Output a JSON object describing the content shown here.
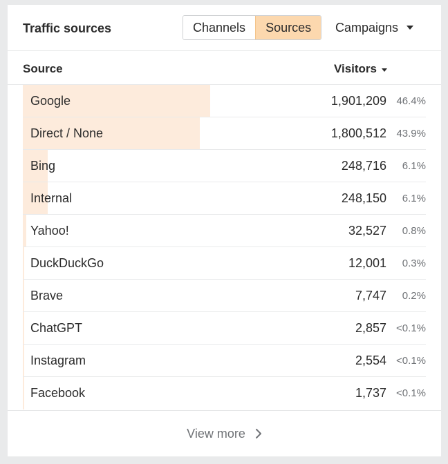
{
  "widget": {
    "title": "Traffic sources",
    "tabs": [
      {
        "label": "Channels",
        "active": false
      },
      {
        "label": "Sources",
        "active": true
      }
    ],
    "campaigns_label": "Campaigns"
  },
  "table": {
    "columns": {
      "source": "Source",
      "visitors": "Visitors"
    },
    "rows": [
      {
        "name": "Google",
        "visitors": "1,901,209",
        "pct": "46.4%",
        "share": 0.464
      },
      {
        "name": "Direct / None",
        "visitors": "1,800,512",
        "pct": "43.9%",
        "share": 0.439
      },
      {
        "name": "Bing",
        "visitors": "248,716",
        "pct": "6.1%",
        "share": 0.061
      },
      {
        "name": "Internal",
        "visitors": "248,150",
        "pct": "6.1%",
        "share": 0.061
      },
      {
        "name": "Yahoo!",
        "visitors": "32,527",
        "pct": "0.8%",
        "share": 0.008
      },
      {
        "name": "DuckDuckGo",
        "visitors": "12,001",
        "pct": "0.3%",
        "share": 0.003
      },
      {
        "name": "Brave",
        "visitors": "7,747",
        "pct": "0.2%",
        "share": 0.002
      },
      {
        "name": "ChatGPT",
        "visitors": "2,857",
        "pct": "<0.1%",
        "share": 0.001
      },
      {
        "name": "Instagram",
        "visitors": "2,554",
        "pct": "<0.1%",
        "share": 0.001
      },
      {
        "name": "Facebook",
        "visitors": "1,737",
        "pct": "<0.1%",
        "share": 0.001
      }
    ]
  },
  "footer": {
    "view_more_label": "View more"
  },
  "colors": {
    "active_tab": "#fcd8ae",
    "bar": "#fdebdc",
    "text": "#2b2b2b",
    "muted": "#6f7276"
  }
}
